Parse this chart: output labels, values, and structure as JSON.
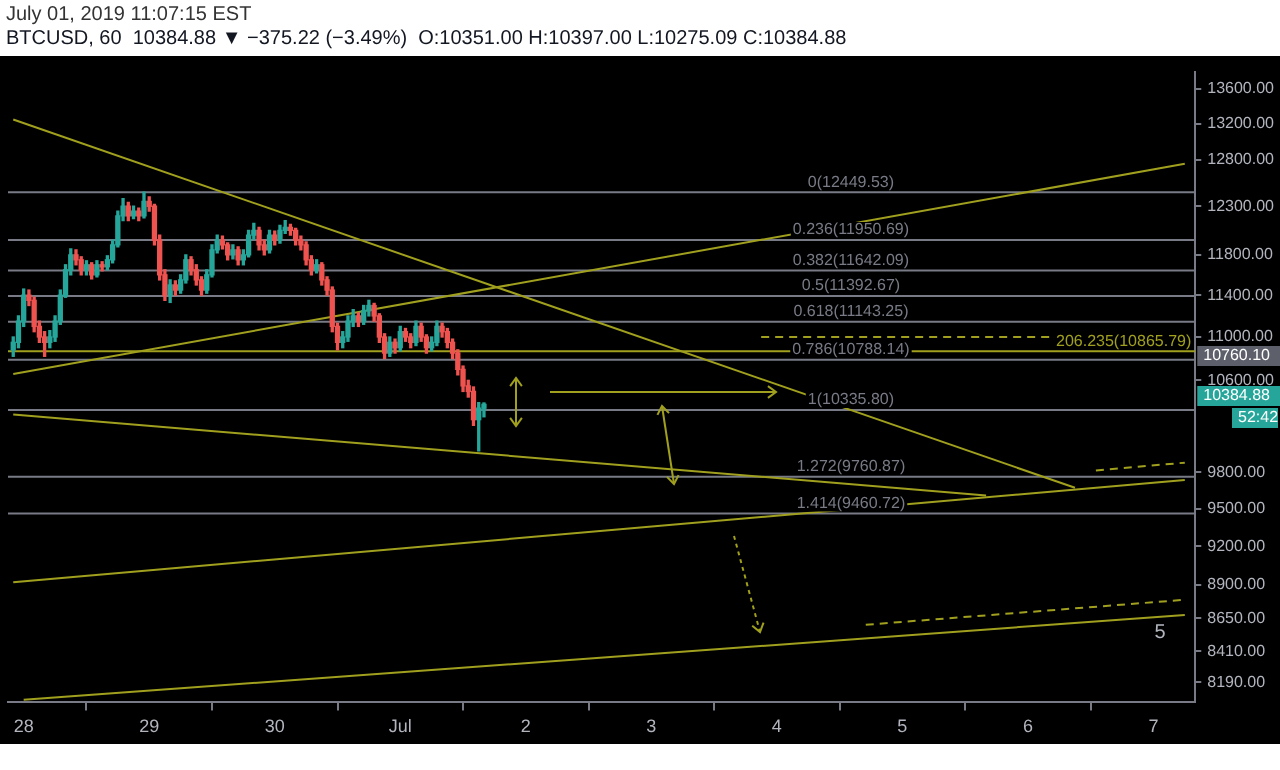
{
  "chart_data": {
    "type": "candlestick",
    "subtitle": "July 01, 2019 11:07:15 EST",
    "title": "BTCUSD, 60  10384.88 ▼ −375.22 (−3.49%)  O:10351.00 H:10397.00 L:10275.09 C:10384.88",
    "x": [
      "2019-06-27T22:00",
      "2019-06-27T23:00",
      "2019-06-28T00:00",
      "2019-06-28T01:00",
      "2019-06-28T02:00",
      "2019-06-28T03:00",
      "2019-06-28T04:00",
      "2019-06-28T05:00",
      "2019-06-28T06:00",
      "2019-06-28T07:00",
      "2019-06-28T08:00",
      "2019-06-28T09:00",
      "2019-06-28T10:00",
      "2019-06-28T11:00",
      "2019-06-28T12:00",
      "2019-06-28T13:00",
      "2019-06-28T14:00",
      "2019-06-28T15:00",
      "2019-06-28T16:00",
      "2019-06-28T17:00",
      "2019-06-28T18:00",
      "2019-06-28T19:00",
      "2019-06-28T20:00",
      "2019-06-28T21:00",
      "2019-06-28T22:00",
      "2019-06-28T23:00",
      "2019-06-29T00:00",
      "2019-06-29T01:00",
      "2019-06-29T02:00",
      "2019-06-29T03:00",
      "2019-06-29T04:00",
      "2019-06-29T05:00",
      "2019-06-29T06:00",
      "2019-06-29T07:00",
      "2019-06-29T08:00",
      "2019-06-29T09:00",
      "2019-06-29T10:00",
      "2019-06-29T11:00",
      "2019-06-29T12:00",
      "2019-06-29T13:00",
      "2019-06-29T14:00",
      "2019-06-29T15:00",
      "2019-06-29T16:00",
      "2019-06-29T17:00",
      "2019-06-29T18:00",
      "2019-06-29T19:00",
      "2019-06-29T20:00",
      "2019-06-29T21:00",
      "2019-06-29T22:00",
      "2019-06-29T23:00",
      "2019-06-30T00:00",
      "2019-06-30T01:00",
      "2019-06-30T02:00",
      "2019-06-30T03:00",
      "2019-06-30T04:00",
      "2019-06-30T05:00",
      "2019-06-30T06:00",
      "2019-06-30T07:00",
      "2019-06-30T08:00",
      "2019-06-30T09:00",
      "2019-06-30T10:00",
      "2019-06-30T11:00",
      "2019-06-30T12:00",
      "2019-06-30T13:00",
      "2019-06-30T14:00",
      "2019-06-30T15:00",
      "2019-06-30T16:00",
      "2019-06-30T17:00",
      "2019-06-30T18:00",
      "2019-06-30T19:00",
      "2019-06-30T20:00",
      "2019-06-30T21:00",
      "2019-06-30T22:00",
      "2019-06-30T23:00",
      "2019-07-01T00:00",
      "2019-07-01T01:00",
      "2019-07-01T02:00",
      "2019-07-01T03:00",
      "2019-07-01T04:00",
      "2019-07-01T05:00",
      "2019-07-01T06:00",
      "2019-07-01T07:00",
      "2019-07-01T08:00",
      "2019-07-01T09:00",
      "2019-07-01T10:00",
      "2019-07-01T11:00",
      "2019-07-01T12:00",
      "2019-07-01T13:00",
      "2019-07-01T14:00",
      "2019-07-01T15:00",
      "2019-07-01T16:00"
    ],
    "ohlc": [
      [
        10880,
        11000,
        10820,
        10950
      ],
      [
        10950,
        11200,
        10900,
        11150
      ],
      [
        11150,
        11460,
        11100,
        11400
      ],
      [
        11400,
        11450,
        11300,
        11350
      ],
      [
        11350,
        11380,
        11050,
        11100
      ],
      [
        11100,
        11150,
        10950,
        11000
      ],
      [
        11000,
        11050,
        10820,
        10950
      ],
      [
        10950,
        11060,
        10900,
        11000
      ],
      [
        11000,
        11200,
        10960,
        11150
      ],
      [
        11150,
        11450,
        11120,
        11400
      ],
      [
        11400,
        11700,
        11380,
        11650
      ],
      [
        11650,
        11860,
        11600,
        11800
      ],
      [
        11800,
        11850,
        11700,
        11750
      ],
      [
        11750,
        11780,
        11600,
        11650
      ],
      [
        11650,
        11740,
        11600,
        11700
      ],
      [
        11700,
        11720,
        11560,
        11600
      ],
      [
        11600,
        11740,
        11580,
        11700
      ],
      [
        11700,
        11730,
        11640,
        11680
      ],
      [
        11680,
        11790,
        11650,
        11750
      ],
      [
        11750,
        11950,
        11720,
        11900
      ],
      [
        11900,
        12250,
        11880,
        12200
      ],
      [
        12200,
        12380,
        12150,
        12300
      ],
      [
        12300,
        12340,
        12150,
        12200
      ],
      [
        12200,
        12300,
        12170,
        12250
      ],
      [
        12250,
        12280,
        12150,
        12200
      ],
      [
        12200,
        12449.53,
        12180,
        12350
      ],
      [
        12350,
        12400,
        12250,
        12300
      ],
      [
        12300,
        12320,
        11900,
        11950
      ],
      [
        11950,
        12000,
        11550,
        11600
      ],
      [
        11600,
        11650,
        11350,
        11400
      ],
      [
        11400,
        11550,
        11330,
        11500
      ],
      [
        11500,
        11540,
        11400,
        11450
      ],
      [
        11450,
        11600,
        11420,
        11550
      ],
      [
        11550,
        11800,
        11520,
        11750
      ],
      [
        11750,
        11780,
        11600,
        11650
      ],
      [
        11650,
        11700,
        11500,
        11550
      ],
      [
        11550,
        11580,
        11400,
        11450
      ],
      [
        11450,
        11650,
        11420,
        11600
      ],
      [
        11600,
        11900,
        11580,
        11850
      ],
      [
        11850,
        12000,
        11820,
        11950
      ],
      [
        11950,
        11990,
        11860,
        11900
      ],
      [
        11900,
        11920,
        11750,
        11800
      ],
      [
        11800,
        11900,
        11760,
        11850
      ],
      [
        11850,
        11880,
        11700,
        11750
      ],
      [
        11750,
        11850,
        11700,
        11800
      ],
      [
        11800,
        12050,
        11780,
        12000
      ],
      [
        12000,
        12120,
        11960,
        12050
      ],
      [
        12050,
        12080,
        11850,
        11900
      ],
      [
        11900,
        11950,
        11800,
        11850
      ],
      [
        11850,
        12050,
        11820,
        12000
      ],
      [
        12000,
        12040,
        11900,
        11950
      ],
      [
        11950,
        12100,
        11920,
        12050
      ],
      [
        12050,
        12150,
        12020,
        12080
      ],
      [
        12080,
        12110,
        12000,
        12050
      ],
      [
        12050,
        12070,
        11900,
        11950
      ],
      [
        11950,
        11990,
        11850,
        11900
      ],
      [
        11900,
        11930,
        11700,
        11750
      ],
      [
        11750,
        11790,
        11600,
        11650
      ],
      [
        11650,
        11750,
        11620,
        11700
      ],
      [
        11700,
        11720,
        11500,
        11550
      ],
      [
        11550,
        11580,
        11400,
        11450
      ],
      [
        11450,
        11480,
        11050,
        11100
      ],
      [
        11100,
        11130,
        10880,
        10950
      ],
      [
        10950,
        11050,
        10900,
        11000
      ],
      [
        11000,
        11200,
        10960,
        11150
      ],
      [
        11150,
        11260,
        11100,
        11200
      ],
      [
        11200,
        11230,
        11100,
        11150
      ],
      [
        11150,
        11300,
        11120,
        11250
      ],
      [
        11250,
        11350,
        11200,
        11300
      ],
      [
        11300,
        11320,
        11150,
        11200
      ],
      [
        11200,
        11220,
        10950,
        11000
      ],
      [
        11000,
        11030,
        10800,
        10850
      ],
      [
        10850,
        11000,
        10820,
        10950
      ],
      [
        10950,
        10980,
        10850,
        10900
      ],
      [
        10900,
        11100,
        10870,
        11050
      ],
      [
        11050,
        11080,
        10960,
        11000
      ],
      [
        11000,
        11030,
        10900,
        10950
      ],
      [
        10950,
        11150,
        10920,
        11100
      ],
      [
        11100,
        11130,
        10960,
        11000
      ],
      [
        11000,
        11020,
        10850,
        10900
      ],
      [
        10900,
        11000,
        10870,
        10950
      ],
      [
        10950,
        11150,
        10920,
        11100
      ],
      [
        11100,
        11130,
        11000,
        11050
      ],
      [
        11050,
        11080,
        10900,
        10950
      ],
      [
        10950,
        10980,
        10800,
        10850
      ],
      [
        10850,
        10880,
        10650,
        10700
      ],
      [
        10700,
        10730,
        10500,
        10550
      ],
      [
        10550,
        10600,
        10450,
        10500
      ],
      [
        10500,
        10540,
        10200,
        10250
      ],
      [
        10250,
        10400,
        9980,
        10351
      ],
      [
        10351,
        10397,
        10275.09,
        10384.88
      ]
    ],
    "series": [
      {
        "type": "line",
        "color": "#a0a01e",
        "line_style": "solid",
        "x": [
          "2019-06-27T22:00",
          "2019-07-06T09:00"
        ],
        "values": [
          13246,
          9670
        ]
      },
      {
        "type": "line",
        "color": "#a0a01e",
        "line_style": "solid",
        "x": [
          "2019-06-27T22:00",
          "2019-07-07T06:00"
        ],
        "values": [
          10658,
          12754
        ]
      },
      {
        "type": "line",
        "color": "#a0a01e",
        "line_style": "solid",
        "x": [
          "2019-06-27T22:00",
          "2019-07-05T16:00"
        ],
        "values": [
          10296,
          9607
        ]
      },
      {
        "type": "line",
        "color": "#a0a01e",
        "line_style": "solid",
        "x": [
          "2019-06-27T22:00",
          "2019-07-07T06:00"
        ],
        "values": [
          8920,
          9735
        ]
      },
      {
        "type": "line",
        "color": "#a0a01e",
        "line_style": "solid",
        "x": [
          "2019-06-28T00:00",
          "2019-07-07T06:00"
        ],
        "values": [
          8068,
          8674
        ]
      },
      {
        "type": "line",
        "color": "#a0a01e",
        "line_style": "dashed",
        "x": [
          "2019-07-06T13:00",
          "2019-07-07T06:00"
        ],
        "values": [
          9815,
          9880
        ]
      },
      {
        "type": "line",
        "color": "#a0a01e",
        "line_style": "dashed",
        "x": [
          "2019-07-04T17:00",
          "2019-07-07T06:00"
        ],
        "values": [
          8602,
          8788
        ]
      },
      {
        "type": "line",
        "color": "#a0a01e",
        "line_style": "dashed",
        "x": [
          "2019-07-03T21:00",
          "2019-07-07T06:00"
        ],
        "values": [
          11000,
          11000
        ]
      }
    ],
    "ref_lines": [
      {
        "axis": "y",
        "value": 12449.53,
        "label": "0(12449.53)",
        "color": "#787b86"
      },
      {
        "axis": "y",
        "value": 11950.69,
        "label": "0.236(11950.69)",
        "color": "#787b86"
      },
      {
        "axis": "y",
        "value": 11642.09,
        "label": "0.382(11642.09)",
        "color": "#787b86"
      },
      {
        "axis": "y",
        "value": 11392.67,
        "label": "0.5(11392.67)",
        "color": "#787b86"
      },
      {
        "axis": "y",
        "value": 11143.25,
        "label": "0.618(11143.25)",
        "color": "#787b86"
      },
      {
        "axis": "y",
        "value": 10788.14,
        "label": "0.786(10788.14)",
        "color": "#787b86"
      },
      {
        "axis": "y",
        "value": 10335.8,
        "label": "1(10335.80)",
        "color": "#787b86"
      },
      {
        "axis": "y",
        "value": 9760.87,
        "label": "1.272(9760.87)",
        "color": "#787b86"
      },
      {
        "axis": "y",
        "value": 9460.72,
        "label": "1.414(9460.72)",
        "color": "#787b86"
      },
      {
        "axis": "y",
        "value": 10865.79,
        "label": "206.235(10865.79)",
        "color": "#a0a01e"
      }
    ],
    "annotations": [
      "10760.10",
      "10384.88",
      "52:42",
      "5"
    ],
    "xlim": [
      "2019-06-27T21:00",
      "2019-07-07T08:00"
    ],
    "xticks": [
      {
        "value": "2019-06-28",
        "label": "28"
      },
      {
        "value": "2019-06-29",
        "label": "29"
      },
      {
        "value": "2019-06-30",
        "label": "30"
      },
      {
        "value": "2019-07-01",
        "label": "Jul"
      },
      {
        "value": "2019-07-02",
        "label": "2"
      },
      {
        "value": "2019-07-03",
        "label": "3"
      },
      {
        "value": "2019-07-04",
        "label": "4"
      },
      {
        "value": "2019-07-05",
        "label": "5"
      },
      {
        "value": "2019-07-06",
        "label": "6"
      },
      {
        "value": "2019-07-07",
        "label": "7"
      }
    ],
    "ylim": [
      8050,
      13800
    ],
    "yticks": [
      {
        "value": 8190,
        "label": "8190.00"
      },
      {
        "value": 8410,
        "label": "8410.00"
      },
      {
        "value": 8650,
        "label": "8650.00"
      },
      {
        "value": 8900,
        "label": "8900.00"
      },
      {
        "value": 9200,
        "label": "9200.00"
      },
      {
        "value": 9500,
        "label": "9500.00"
      },
      {
        "value": 9800,
        "label": "9800.00"
      },
      {
        "value": 10600,
        "label": "10600.00"
      },
      {
        "value": 11000,
        "label": "11000.00"
      },
      {
        "value": 11400,
        "label": "11400.00"
      },
      {
        "value": 11800,
        "label": "11800.00"
      },
      {
        "value": 12300,
        "label": "12300.00"
      },
      {
        "value": 12800,
        "label": "12800.00"
      },
      {
        "value": 13200,
        "label": "13200.00"
      },
      {
        "value": 13600,
        "label": "13600.00"
      }
    ],
    "log": "y",
    "grid": false,
    "legend": false
  }
}
